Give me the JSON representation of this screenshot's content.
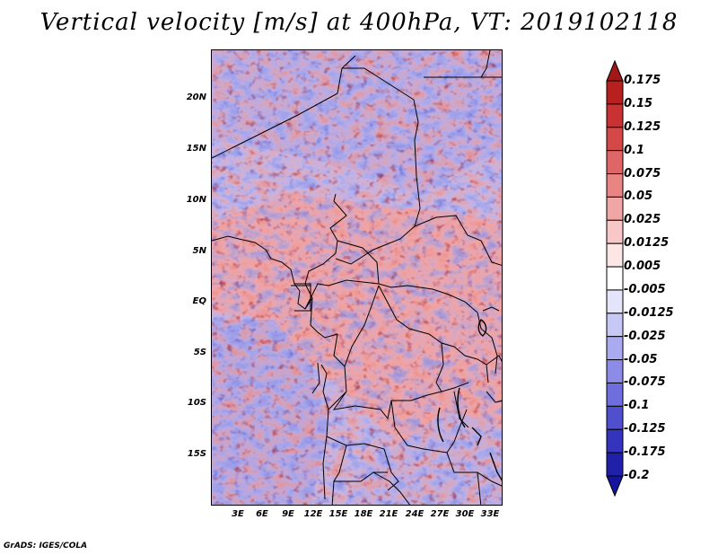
{
  "title": "Vertical velocity [m/s] at 400hPa, VT: 2019102118",
  "footer": "GrADS: IGES/COLA",
  "map": {
    "lat_labels": [
      "20N",
      "15N",
      "10N",
      "5N",
      "EQ",
      "5S",
      "10S",
      "15S"
    ],
    "lon_labels": [
      "3E",
      "6E",
      "9E",
      "12E",
      "15E",
      "18E",
      "21E",
      "24E",
      "27E",
      "30E",
      "33E"
    ],
    "extent_degrees": {
      "lon_min": 0,
      "lon_max": 34.5,
      "lat_min": -20,
      "lat_max": 24.5
    },
    "field": "vertical velocity",
    "units": "m/s",
    "level": "400hPa"
  },
  "colorbar": {
    "levels": [
      "0.175",
      "0.15",
      "0.125",
      "0.1",
      "0.075",
      "0.05",
      "0.025",
      "0.0125",
      "0.005",
      "-0.005",
      "-0.0125",
      "-0.025",
      "-0.05",
      "-0.075",
      "-0.1",
      "-0.125",
      "-0.175",
      "-0.2"
    ],
    "colors": [
      "#a01818",
      "#b82020",
      "#c83232",
      "#d44848",
      "#df6666",
      "#e88484",
      "#f1a6a6",
      "#f8c8c8",
      "#fde6e6",
      "#ffffff",
      "#e4e4fb",
      "#c8c8f6",
      "#aaaaf0",
      "#8c8ce8",
      "#6e6ede",
      "#5050cf",
      "#3434be",
      "#2020aa",
      "#1414a0"
    ]
  }
}
